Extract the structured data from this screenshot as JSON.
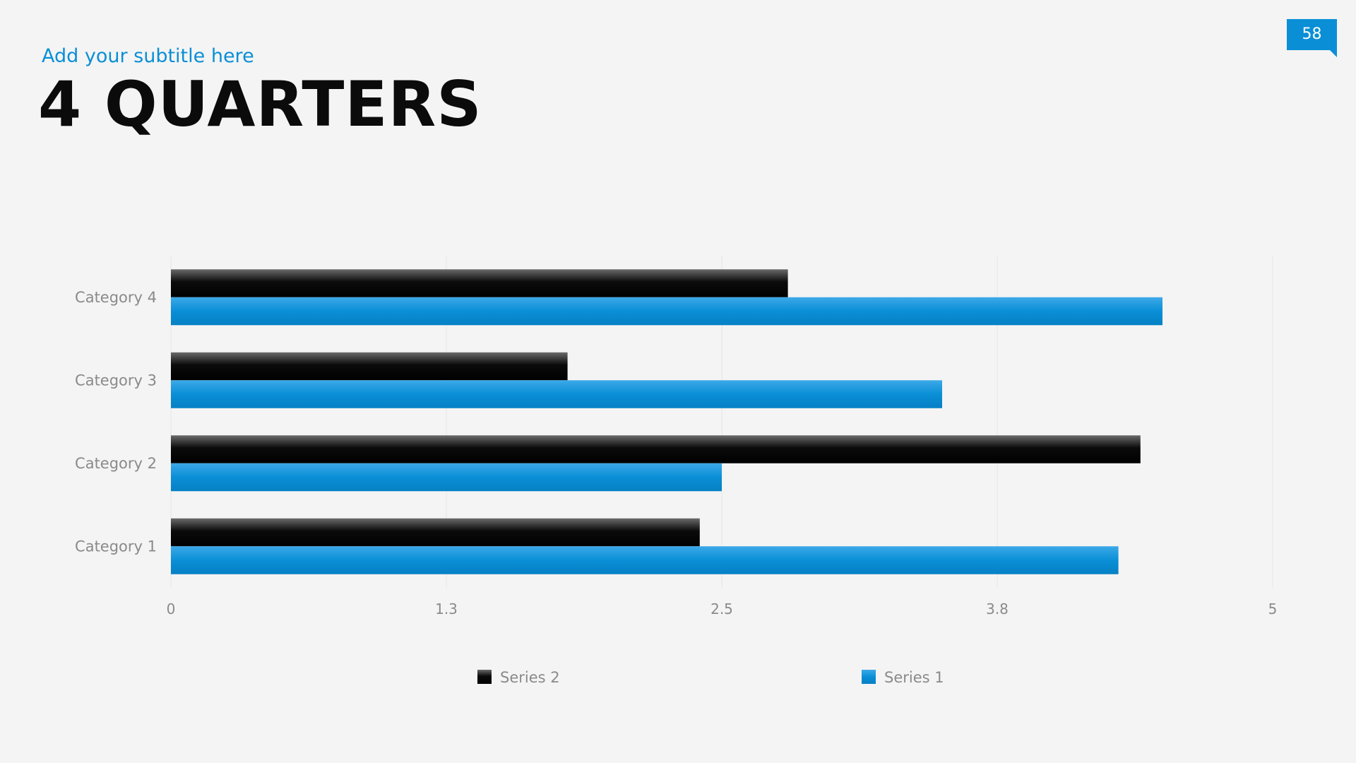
{
  "header": {
    "subtitle": "Add your subtitle here",
    "title": "4 QUARTERS",
    "page_number": "58"
  },
  "colors": {
    "accent": "#0a8fd6",
    "series_black": "#0b0b0b",
    "series_blue": "#0a8fd6",
    "background": "#f4f4f4"
  },
  "chart_data": {
    "type": "bar",
    "orientation": "horizontal",
    "title": "",
    "xlabel": "",
    "ylabel": "",
    "categories": [
      "Category 1",
      "Category 2",
      "Category 3",
      "Category 4"
    ],
    "series": [
      {
        "name": "Series 2",
        "color": "#0b0b0b",
        "values": [
          2.4,
          4.4,
          1.8,
          2.8
        ]
      },
      {
        "name": "Series 1",
        "color": "#0a8fd6",
        "values": [
          4.3,
          2.5,
          3.5,
          4.5
        ]
      }
    ],
    "xlim": [
      0,
      5
    ],
    "x_ticks": [
      "0",
      "1.3",
      "2.5",
      "3.8",
      "5"
    ],
    "x_tick_values": [
      0,
      1.25,
      2.5,
      3.75,
      5
    ],
    "grid": true,
    "legend": {
      "position": "bottom",
      "order": [
        "Series 2",
        "Series 1"
      ]
    }
  }
}
